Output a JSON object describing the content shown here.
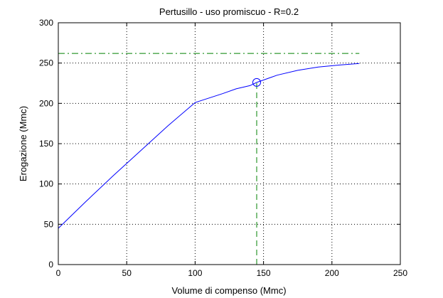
{
  "chart_data": {
    "type": "line",
    "title": "Pertusillo  -  uso promiscuo  -   R=0.2",
    "xlabel": "Volume di compenso (Mmc)",
    "ylabel": "Erogazione (Mmc)",
    "xlim": [
      0,
      250
    ],
    "ylim": [
      0,
      300
    ],
    "xticks": [
      0,
      50,
      100,
      150,
      200,
      250
    ],
    "yticks": [
      0,
      50,
      100,
      150,
      200,
      250,
      300
    ],
    "grid": true,
    "series": [
      {
        "color": "#0000ff",
        "style": "solid",
        "x": [
          0,
          20,
          40,
          60,
          80,
          100,
          120,
          130,
          140,
          145,
          150,
          160,
          175,
          190,
          205,
          220
        ],
        "y": [
          45,
          78,
          110,
          141,
          172,
          201,
          212,
          218,
          222,
          226,
          229,
          235,
          241,
          245,
          247.5,
          249.5
        ]
      },
      {
        "color": "#008000",
        "style": "dashdot",
        "x": [
          0,
          220
        ],
        "y": [
          262,
          262
        ]
      },
      {
        "color": "#008000",
        "style": "dashed",
        "x": [
          145,
          145
        ],
        "y": [
          0,
          226
        ]
      }
    ],
    "marker": {
      "x": 145,
      "y": 226,
      "shape": "circle",
      "color": "#0000ff"
    }
  }
}
